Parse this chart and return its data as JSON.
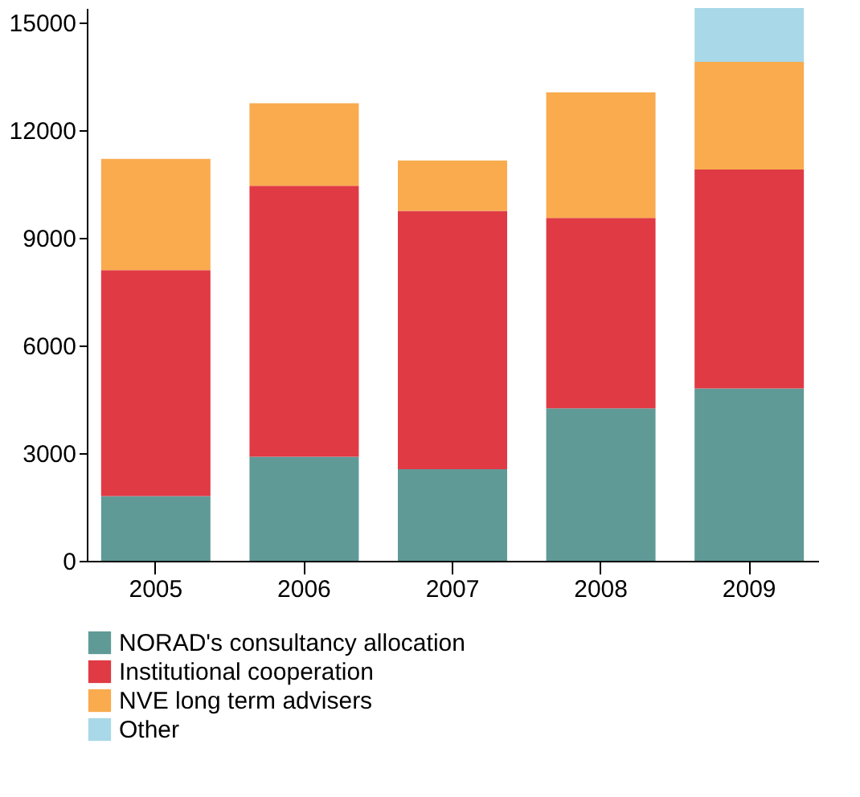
{
  "chart_data": {
    "type": "bar",
    "stacked": true,
    "categories": [
      "2005",
      "2006",
      "2007",
      "2008",
      "2009"
    ],
    "series": [
      {
        "name": "NORAD's consultancy allocation",
        "color": "#5f9a97",
        "values": [
          1800,
          2900,
          2550,
          4250,
          4800
        ]
      },
      {
        "name": "Institutional cooperation",
        "color": "#e03a45",
        "values": [
          6300,
          7550,
          7200,
          5300,
          6100
        ]
      },
      {
        "name": "NVE long term advisers",
        "color": "#f9ab4e",
        "values": [
          3100,
          2300,
          1400,
          3500,
          3000
        ]
      },
      {
        "name": "Other",
        "color": "#a9d8e8",
        "values": [
          0,
          0,
          0,
          0,
          1500
        ]
      }
    ],
    "ylim": [
      0,
      15400
    ],
    "yticks": [
      0,
      3000,
      6000,
      9000,
      12000,
      15000
    ],
    "grid": false,
    "legend": "bottom"
  }
}
